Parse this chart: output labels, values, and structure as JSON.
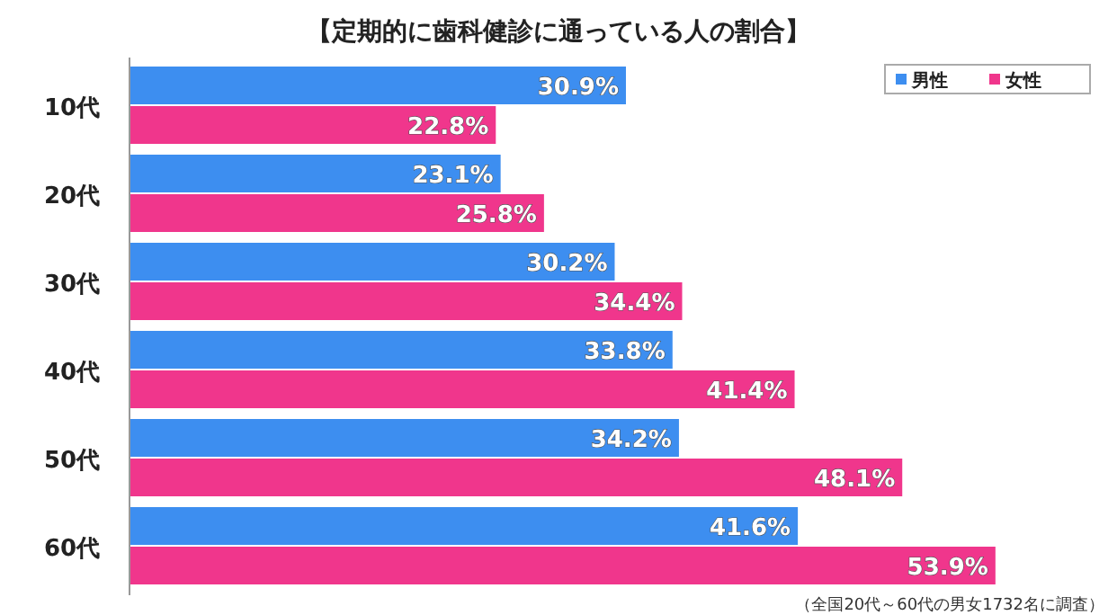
{
  "chart_data": {
    "type": "bar",
    "orientation": "horizontal",
    "title": "【定期的に歯科健診に通っている人の割合】",
    "categories": [
      "10代",
      "20代",
      "30代",
      "40代",
      "50代",
      "60代"
    ],
    "series": [
      {
        "name": "男性",
        "color": "#3d8ef0",
        "values": [
          30.9,
          23.1,
          30.2,
          33.8,
          34.2,
          41.6
        ],
        "value_labels": [
          "30.9%",
          "23.1%",
          "30.2%",
          "33.8%",
          "34.2%",
          "41.6%"
        ]
      },
      {
        "name": "女性",
        "color": "#f0368c",
        "values": [
          22.8,
          25.8,
          34.4,
          41.4,
          48.1,
          53.9
        ],
        "value_labels": [
          "22.8%",
          "25.8%",
          "34.4%",
          "41.4%",
          "48.1%",
          "53.9%"
        ]
      }
    ],
    "legend": "top right",
    "annotations": [
      "（全国20代～60代の男女1732名に調査）"
    ]
  }
}
